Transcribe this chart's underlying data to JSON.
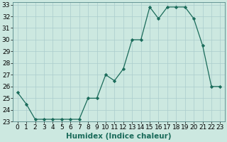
{
  "x": [
    0,
    1,
    2,
    3,
    4,
    5,
    6,
    7,
    8,
    9,
    10,
    11,
    12,
    13,
    14,
    15,
    16,
    17,
    18,
    19,
    20,
    21,
    22,
    23
  ],
  "y": [
    25.5,
    24.5,
    23.2,
    23.2,
    23.2,
    23.2,
    23.2,
    23.2,
    25.0,
    25.0,
    27.0,
    26.5,
    27.5,
    30.0,
    30.0,
    32.8,
    31.8,
    32.8,
    32.8,
    32.8,
    31.8,
    29.5,
    26.0,
    26.0
  ],
  "line_color": "#1a6b5a",
  "marker": "D",
  "marker_size": 2.2,
  "bg_color": "#cce8e0",
  "grid_color": "#aacccc",
  "xlabel": "Humidex (Indice chaleur)",
  "ylabel": "",
  "xlim": [
    -0.5,
    23.5
  ],
  "ylim": [
    23,
    33.2
  ],
  "xticks": [
    0,
    1,
    2,
    3,
    4,
    5,
    6,
    7,
    8,
    9,
    10,
    11,
    12,
    13,
    14,
    15,
    16,
    17,
    18,
    19,
    20,
    21,
    22,
    23
  ],
  "yticks": [
    23,
    24,
    25,
    26,
    27,
    28,
    29,
    30,
    31,
    32,
    33
  ],
  "tick_fontsize": 6.5,
  "xlabel_fontsize": 7.5
}
